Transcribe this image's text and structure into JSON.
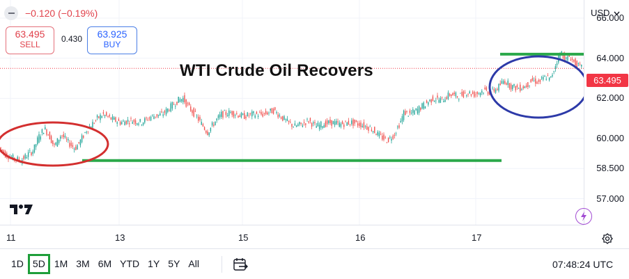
{
  "header": {
    "change": "−0.120 (−0.19%)",
    "sell_price": "63.495",
    "sell_label": "SELL",
    "spread": "0.430",
    "buy_price": "63.925",
    "buy_label": "BUY",
    "currency": "USD"
  },
  "annotation_title": "WTI Crude Oil Recovers",
  "current_price_label": "63.495",
  "bottom_bar": {
    "ranges": [
      "1D",
      "5D",
      "1M",
      "3M",
      "6M",
      "YTD",
      "1Y",
      "5Y",
      "All"
    ],
    "active_range": "5D",
    "time": "07:48:24 UTC"
  },
  "colors": {
    "up": "#26a69a",
    "down": "#ef5350",
    "support_line": "#2aa84a",
    "left_ellipse": "#d32f2f",
    "right_ellipse": "#2d3aa8",
    "price_label": "#f23645"
  },
  "chart_data": {
    "type": "line",
    "title": "WTI Crude Oil Recovers",
    "x_ticks": [
      "11",
      "13",
      "15",
      "16",
      "17"
    ],
    "y_ticks": [
      "66.000",
      "64.000",
      "62.000",
      "60.000",
      "58.500",
      "57.000"
    ],
    "ylim": [
      55.7,
      66.9
    ],
    "last_price": 63.495,
    "series": [
      {
        "values": [
          [
            0,
            59.6
          ],
          [
            10,
            59.2
          ],
          [
            22,
            59.0
          ],
          [
            32,
            58.9
          ],
          [
            42,
            59.2
          ],
          [
            50,
            59.4
          ],
          [
            58,
            60.1
          ],
          [
            66,
            60.5
          ],
          [
            72,
            60.2
          ],
          [
            80,
            59.6
          ],
          [
            90,
            60.2
          ],
          [
            100,
            59.8
          ],
          [
            110,
            59.5
          ],
          [
            118,
            59.9
          ],
          [
            126,
            60.4
          ],
          [
            134,
            60.7
          ],
          [
            142,
            61.0
          ],
          [
            150,
            61.2
          ],
          [
            160,
            61.0
          ],
          [
            175,
            60.8
          ],
          [
            190,
            60.9
          ],
          [
            205,
            60.8
          ],
          [
            220,
            61.1
          ],
          [
            235,
            61.2
          ],
          [
            248,
            61.6
          ],
          [
            258,
            61.9
          ],
          [
            265,
            62.0
          ],
          [
            272,
            61.6
          ],
          [
            282,
            61.2
          ],
          [
            292,
            60.7
          ],
          [
            300,
            60.3
          ],
          [
            310,
            60.8
          ],
          [
            320,
            61.2
          ],
          [
            335,
            61.3
          ],
          [
            350,
            61.1
          ],
          [
            365,
            61.2
          ],
          [
            380,
            61.2
          ],
          [
            395,
            61.4
          ],
          [
            405,
            61.1
          ],
          [
            415,
            60.8
          ],
          [
            425,
            60.6
          ],
          [
            435,
            60.7
          ],
          [
            445,
            60.9
          ],
          [
            455,
            60.6
          ],
          [
            465,
            60.7
          ],
          [
            478,
            60.8
          ],
          [
            490,
            60.7
          ],
          [
            505,
            60.8
          ],
          [
            520,
            60.7
          ],
          [
            535,
            60.5
          ],
          [
            548,
            60.1
          ],
          [
            558,
            59.9
          ],
          [
            568,
            60.2
          ],
          [
            578,
            60.9
          ],
          [
            582,
            61.3
          ],
          [
            590,
            61.2
          ],
          [
            600,
            61.4
          ],
          [
            612,
            61.7
          ],
          [
            624,
            62.0
          ],
          [
            636,
            61.9
          ],
          [
            648,
            62.2
          ],
          [
            660,
            62.1
          ],
          [
            672,
            62.3
          ],
          [
            684,
            62.2
          ],
          [
            696,
            62.4
          ],
          [
            706,
            62.3
          ],
          [
            716,
            62.5
          ],
          [
            726,
            62.9
          ],
          [
            736,
            62.6
          ],
          [
            746,
            62.5
          ],
          [
            756,
            62.6
          ],
          [
            766,
            62.9
          ],
          [
            776,
            62.8
          ],
          [
            786,
            63.1
          ],
          [
            792,
            62.9
          ],
          [
            798,
            63.5
          ],
          [
            803,
            64.0
          ],
          [
            808,
            64.3
          ],
          [
            814,
            63.9
          ],
          [
            820,
            64.1
          ],
          [
            826,
            63.8
          ],
          [
            832,
            63.6
          ],
          [
            838,
            63.5
          ]
        ]
      }
    ],
    "annotations": {
      "support_level": 58.9,
      "resistance_level": 64.2
    }
  }
}
